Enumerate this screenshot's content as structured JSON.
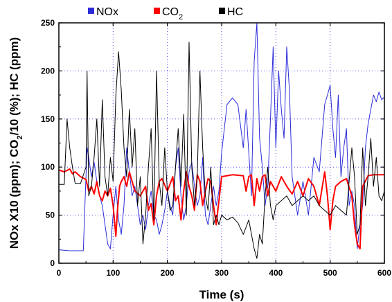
{
  "chart_data": {
    "type": "line",
    "xlabel": "Time (s)",
    "ylabel": "NOx X10 (ppm); CO2/10 (%); HC (ppm)",
    "xlim": [
      0,
      600
    ],
    "ylim": [
      0,
      250
    ],
    "xticks": [
      0,
      100,
      200,
      300,
      400,
      500,
      600
    ],
    "yticks": [
      0,
      50,
      100,
      150,
      200,
      250
    ],
    "grid": true,
    "legend_position": "top",
    "legend": [
      {
        "label": "NOx",
        "sub": "",
        "color": "#2b2bd9"
      },
      {
        "label": "CO",
        "sub": "2",
        "color": "#ff0000"
      },
      {
        "label": "HC",
        "sub": "",
        "color": "#000000"
      }
    ],
    "series": [
      {
        "name": "NOx",
        "color": "#2b2bd9",
        "x": [
          0,
          20,
          45,
          48,
          52,
          55,
          60,
          65,
          70,
          75,
          80,
          85,
          90,
          95,
          100,
          105,
          110,
          115,
          120,
          125,
          130,
          135,
          140,
          145,
          150,
          155,
          160,
          165,
          170,
          175,
          180,
          185,
          190,
          195,
          200,
          205,
          210,
          215,
          220,
          225,
          230,
          235,
          240,
          245,
          250,
          255,
          260,
          265,
          270,
          275,
          280,
          285,
          290,
          295,
          300,
          310,
          320,
          330,
          340,
          345,
          350,
          355,
          360,
          365,
          370,
          375,
          380,
          385,
          390,
          395,
          400,
          405,
          410,
          415,
          420,
          425,
          430,
          440,
          450,
          460,
          470,
          480,
          490,
          495,
          500,
          505,
          510,
          515,
          520,
          525,
          530,
          535,
          540,
          545,
          550,
          555,
          560,
          565,
          570,
          575,
          580,
          585,
          590,
          595,
          600
        ],
        "y": [
          14,
          13,
          13,
          60,
          120,
          110,
          90,
          105,
          85,
          70,
          60,
          40,
          20,
          15,
          50,
          80,
          45,
          30,
          60,
          120,
          95,
          70,
          80,
          60,
          40,
          50,
          35,
          60,
          75,
          50,
          45,
          30,
          40,
          55,
          75,
          60,
          50,
          100,
          120,
          70,
          45,
          60,
          95,
          105,
          80,
          60,
          70,
          110,
          50,
          40,
          60,
          80,
          60,
          75,
          115,
          165,
          172,
          165,
          120,
          160,
          115,
          70,
          210,
          250,
          130,
          100,
          60,
          80,
          150,
          225,
          120,
          200,
          160,
          130,
          225,
          180,
          90,
          50,
          85,
          50,
          110,
          95,
          165,
          175,
          185,
          140,
          110,
          175,
          90,
          120,
          140,
          60,
          75,
          60,
          15,
          40,
          60,
          120,
          145,
          160,
          175,
          168,
          178,
          170,
          173
        ]
      },
      {
        "name": "CO2",
        "color": "#ff0000",
        "x": [
          0,
          10,
          20,
          25,
          30,
          40,
          50,
          55,
          60,
          65,
          70,
          75,
          80,
          85,
          90,
          95,
          100,
          105,
          108,
          112,
          115,
          120,
          125,
          130,
          140,
          150,
          160,
          165,
          170,
          175,
          180,
          185,
          190,
          200,
          210,
          215,
          220,
          225,
          230,
          235,
          240,
          245,
          250,
          255,
          260,
          265,
          270,
          275,
          280,
          285,
          290,
          295,
          300,
          320,
          340,
          345,
          350,
          355,
          360,
          365,
          370,
          375,
          380,
          385,
          390,
          400,
          410,
          420,
          430,
          440,
          450,
          460,
          470,
          480,
          490,
          495,
          500,
          505,
          510,
          520,
          530,
          540,
          545,
          550,
          555,
          560,
          570,
          580,
          590,
          600
        ],
        "y": [
          97,
          95,
          98,
          93,
          95,
          90,
          87,
          75,
          80,
          72,
          85,
          70,
          65,
          75,
          70,
          78,
          60,
          28,
          55,
          80,
          85,
          90,
          80,
          95,
          75,
          70,
          80,
          55,
          62,
          40,
          70,
          85,
          88,
          75,
          90,
          65,
          70,
          45,
          75,
          95,
          80,
          70,
          55,
          92,
          85,
          60,
          75,
          88,
          85,
          60,
          40,
          65,
          90,
          92,
          91,
          75,
          90,
          92,
          60,
          88,
          75,
          90,
          92,
          70,
          85,
          75,
          90,
          80,
          72,
          85,
          70,
          88,
          80,
          60,
          95,
          70,
          35,
          65,
          80,
          85,
          88,
          70,
          40,
          20,
          15,
          80,
          91,
          92,
          92,
          92
        ]
      },
      {
        "name": "HC",
        "color": "#000000",
        "x": [
          0,
          10,
          15,
          20,
          25,
          30,
          40,
          50,
          52,
          55,
          60,
          65,
          70,
          75,
          80,
          85,
          90,
          95,
          100,
          105,
          110,
          115,
          120,
          125,
          130,
          135,
          140,
          145,
          150,
          155,
          160,
          165,
          170,
          175,
          180,
          185,
          190,
          195,
          200,
          205,
          210,
          215,
          220,
          225,
          230,
          235,
          240,
          245,
          250,
          255,
          260,
          265,
          270,
          275,
          280,
          285,
          290,
          295,
          300,
          310,
          320,
          330,
          340,
          350,
          360,
          365,
          370,
          375,
          380,
          385,
          390,
          395,
          400,
          410,
          420,
          430,
          440,
          450,
          460,
          470,
          480,
          490,
          500,
          510,
          520,
          530,
          540,
          545,
          550,
          555,
          560,
          565,
          570,
          575,
          580,
          585,
          590,
          595,
          600
        ],
        "y": [
          82,
          82,
          150,
          120,
          100,
          83,
          83,
          100,
          200,
          70,
          80,
          110,
          150,
          80,
          170,
          90,
          70,
          110,
          85,
          175,
          220,
          180,
          120,
          90,
          160,
          100,
          140,
          60,
          90,
          20,
          50,
          100,
          140,
          45,
          200,
          85,
          60,
          120,
          75,
          55,
          60,
          100,
          140,
          80,
          155,
          50,
          230,
          100,
          60,
          90,
          200,
          120,
          70,
          55,
          100,
          40,
          50,
          40,
          50,
          45,
          48,
          42,
          30,
          45,
          15,
          5,
          30,
          20,
          70,
          100,
          60,
          45,
          60,
          65,
          70,
          60,
          65,
          70,
          65,
          70,
          60,
          55,
          50,
          60,
          55,
          50,
          120,
          90,
          30,
          40,
          120,
          60,
          90,
          130,
          80,
          110,
          70,
          65,
          75
        ]
      }
    ]
  }
}
